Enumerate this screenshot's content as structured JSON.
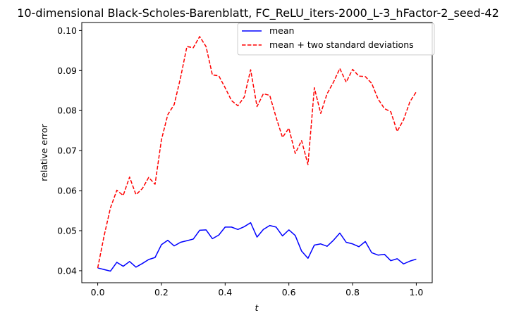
{
  "chart_data": {
    "type": "line",
    "title": "10-dimensional Black-Scholes-Barenblatt, FC_ReLU_iters-2000_L-3_hFactor-2_seed-42",
    "xlabel": "t",
    "ylabel": "relative error",
    "xlim": [
      -0.05,
      1.05
    ],
    "ylim": [
      0.037,
      0.102
    ],
    "x_ticks": [
      0.0,
      0.2,
      0.4,
      0.6,
      0.8,
      1.0
    ],
    "x_tick_labels": [
      "0.0",
      "0.2",
      "0.4",
      "0.6",
      "0.8",
      "1.0"
    ],
    "y_ticks": [
      0.04,
      0.05,
      0.06,
      0.07,
      0.08,
      0.09,
      0.1
    ],
    "y_tick_labels": [
      "0.04",
      "0.05",
      "0.06",
      "0.07",
      "0.08",
      "0.09",
      "0.10"
    ],
    "grid": false,
    "legend_position": "top-right",
    "x": [
      0.0,
      0.02,
      0.04,
      0.06,
      0.08,
      0.1,
      0.12,
      0.14,
      0.16,
      0.18,
      0.2,
      0.22,
      0.24,
      0.26,
      0.28,
      0.3,
      0.32,
      0.34,
      0.36,
      0.38,
      0.4,
      0.42,
      0.44,
      0.46,
      0.48,
      0.5,
      0.52,
      0.54,
      0.56,
      0.58,
      0.6,
      0.62,
      0.64,
      0.66,
      0.68,
      0.7,
      0.72,
      0.74,
      0.76,
      0.78,
      0.8,
      0.82,
      0.84,
      0.86,
      0.88,
      0.9,
      0.92,
      0.94,
      0.96,
      0.98,
      1.0
    ],
    "series": [
      {
        "name": "mean",
        "color": "#0000ff",
        "style": "solid",
        "values": [
          0.0407,
          0.0403,
          0.0399,
          0.0421,
          0.0411,
          0.0423,
          0.0409,
          0.0418,
          0.0428,
          0.0433,
          0.0465,
          0.0476,
          0.0462,
          0.0471,
          0.0475,
          0.0479,
          0.0501,
          0.0502,
          0.048,
          0.0489,
          0.0509,
          0.0509,
          0.0503,
          0.051,
          0.052,
          0.0484,
          0.0503,
          0.0513,
          0.0509,
          0.0487,
          0.0502,
          0.0488,
          0.0449,
          0.0431,
          0.0464,
          0.0467,
          0.0461,
          0.0476,
          0.0494,
          0.0471,
          0.0467,
          0.046,
          0.0473,
          0.0445,
          0.0439,
          0.0441,
          0.0425,
          0.043,
          0.0417,
          0.0424,
          0.0429
        ]
      },
      {
        "name": "mean + two standard deviations",
        "color": "#ff0000",
        "style": "dashed",
        "values": [
          0.0407,
          0.0487,
          0.0557,
          0.0601,
          0.0588,
          0.0634,
          0.059,
          0.0605,
          0.0633,
          0.0616,
          0.0727,
          0.079,
          0.0815,
          0.0882,
          0.096,
          0.0957,
          0.0985,
          0.096,
          0.0889,
          0.0887,
          0.0857,
          0.0825,
          0.0812,
          0.0834,
          0.0902,
          0.081,
          0.0842,
          0.0838,
          0.0783,
          0.0733,
          0.0756,
          0.0693,
          0.0725,
          0.0665,
          0.0857,
          0.0793,
          0.0842,
          0.0871,
          0.0905,
          0.0871,
          0.0903,
          0.0886,
          0.0885,
          0.0868,
          0.0829,
          0.0805,
          0.0797,
          0.0748,
          0.0777,
          0.0822,
          0.0847
        ]
      }
    ]
  }
}
